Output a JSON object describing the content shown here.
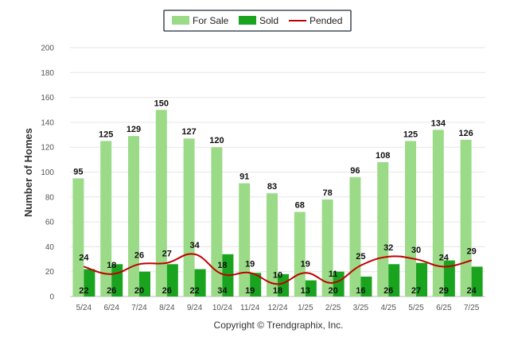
{
  "chart_data": {
    "type": "bar",
    "categories": [
      "5/24",
      "6/24",
      "7/24",
      "8/24",
      "9/24",
      "10/24",
      "11/24",
      "12/24",
      "1/25",
      "2/25",
      "3/25",
      "4/25",
      "5/25",
      "6/25",
      "7/25"
    ],
    "series": [
      {
        "name": "For Sale",
        "type": "bar",
        "color": "#9bdb87",
        "values": [
          95,
          125,
          129,
          150,
          127,
          120,
          91,
          83,
          68,
          78,
          96,
          108,
          125,
          134,
          126
        ]
      },
      {
        "name": "Sold",
        "type": "bar",
        "color": "#1aa31f",
        "values": [
          22,
          26,
          20,
          26,
          22,
          34,
          19,
          18,
          13,
          20,
          16,
          26,
          27,
          29,
          24
        ]
      },
      {
        "name": "Pended",
        "type": "line",
        "color": "#c00000",
        "values": [
          24,
          18,
          26,
          27,
          34,
          18,
          19,
          10,
          19,
          11,
          25,
          32,
          30,
          24,
          29
        ]
      }
    ],
    "ylabel": "Number of Homes",
    "ylim": [
      0,
      200
    ],
    "yticks": [
      0,
      20,
      40,
      60,
      80,
      100,
      120,
      140,
      160,
      180,
      200
    ],
    "grid": true,
    "legend_position": "top-center"
  },
  "credit": "Copyright © Trendgraphix, Inc."
}
